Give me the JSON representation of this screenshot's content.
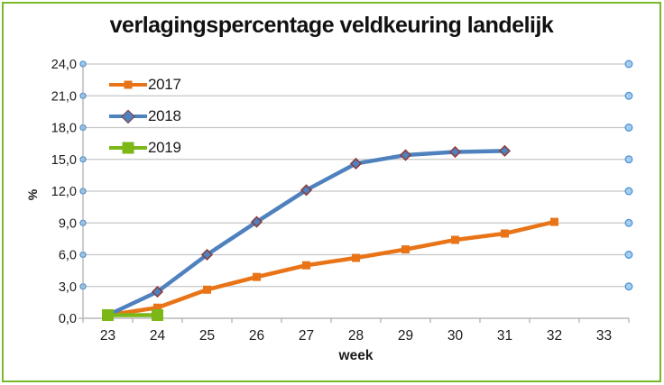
{
  "frame": {
    "border_color": "#79B928",
    "background": "#FFFFFF"
  },
  "chart_data": {
    "type": "line",
    "title": "verlagingspercentage veldkeuring landelijk",
    "xlabel": "week",
    "ylabel": "%",
    "x_categories": [
      "23",
      "24",
      "25",
      "26",
      "27",
      "28",
      "29",
      "30",
      "31",
      "32",
      "33"
    ],
    "ylim": [
      0,
      24
    ],
    "y_tick_step": 3,
    "y_tick_values": [
      24,
      21,
      18,
      15,
      12,
      9,
      6,
      3,
      0
    ],
    "y_tick_labels": [
      "24,0",
      "21,0",
      "18,0",
      "15,0",
      "12,0",
      "9,0",
      "6,0",
      "3,0",
      "0,0"
    ],
    "grid": true,
    "legend_position": "top-left-inside",
    "gridline_end_markers": {
      "shape": "circle",
      "fill": "#A8CEEF",
      "stroke": "#4C93D6"
    },
    "series": [
      {
        "name": "2017",
        "color": "#E87417",
        "marker": "square",
        "marker_size": 9,
        "weeks": [
          23,
          24,
          25,
          26,
          27,
          28,
          29,
          30,
          31,
          32
        ],
        "values": [
          0.3,
          1.0,
          2.7,
          3.9,
          5.0,
          5.7,
          6.5,
          7.4,
          8.0,
          9.1
        ]
      },
      {
        "name": "2018",
        "color": "#4E81BD",
        "marker": "diamond",
        "marker_size": 11,
        "marker_outline": "#8E3A38",
        "weeks": [
          23,
          24,
          25,
          26,
          27,
          28,
          29,
          30,
          31
        ],
        "values": [
          0.3,
          2.5,
          6.0,
          9.1,
          12.1,
          14.6,
          15.4,
          15.7,
          15.8
        ]
      },
      {
        "name": "2019",
        "color": "#7CB718",
        "marker": "square",
        "marker_size": 13,
        "weeks": [
          23,
          24
        ],
        "values": [
          0.3,
          0.3
        ]
      }
    ]
  }
}
